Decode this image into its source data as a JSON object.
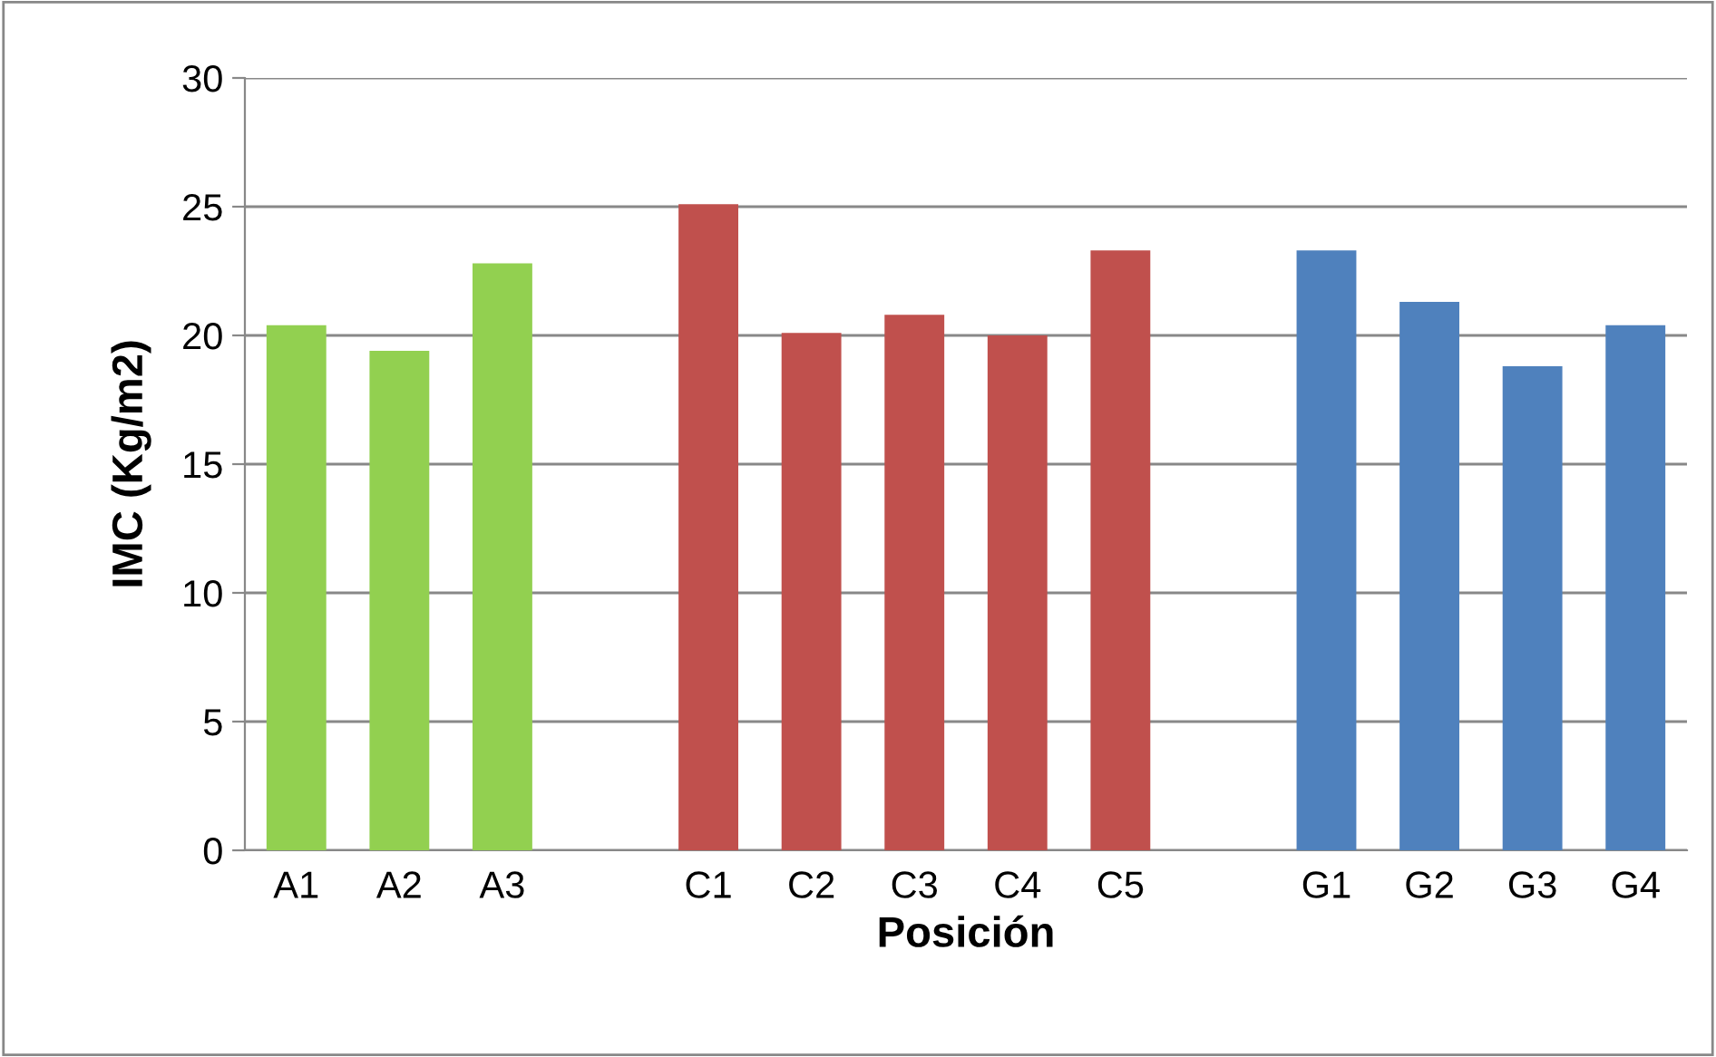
{
  "chart_data": {
    "type": "bar",
    "xlabel": "Posición",
    "ylabel": "IMC (Kg/m2)",
    "categories": [
      "A1",
      "A2",
      "A3",
      null,
      "C1",
      "C2",
      "C3",
      "C4",
      "C5",
      null,
      "G1",
      "G2",
      "G3",
      "G4"
    ],
    "values": [
      20.4,
      19.4,
      22.8,
      null,
      25.1,
      20.1,
      20.8,
      20.0,
      23.3,
      null,
      23.3,
      21.3,
      18.8,
      20.4
    ],
    "colors": [
      "#92d050",
      "#92d050",
      "#92d050",
      "#ffffff",
      "#c0504d",
      "#c0504d",
      "#c0504d",
      "#c0504d",
      "#c0504d",
      "#ffffff",
      "#4f81bd",
      "#4f81bd",
      "#4f81bd",
      "#4f81bd"
    ],
    "ylim": [
      0,
      30
    ],
    "yticks": [
      0,
      5,
      10,
      15,
      20,
      25,
      30
    ],
    "grid": "y"
  }
}
